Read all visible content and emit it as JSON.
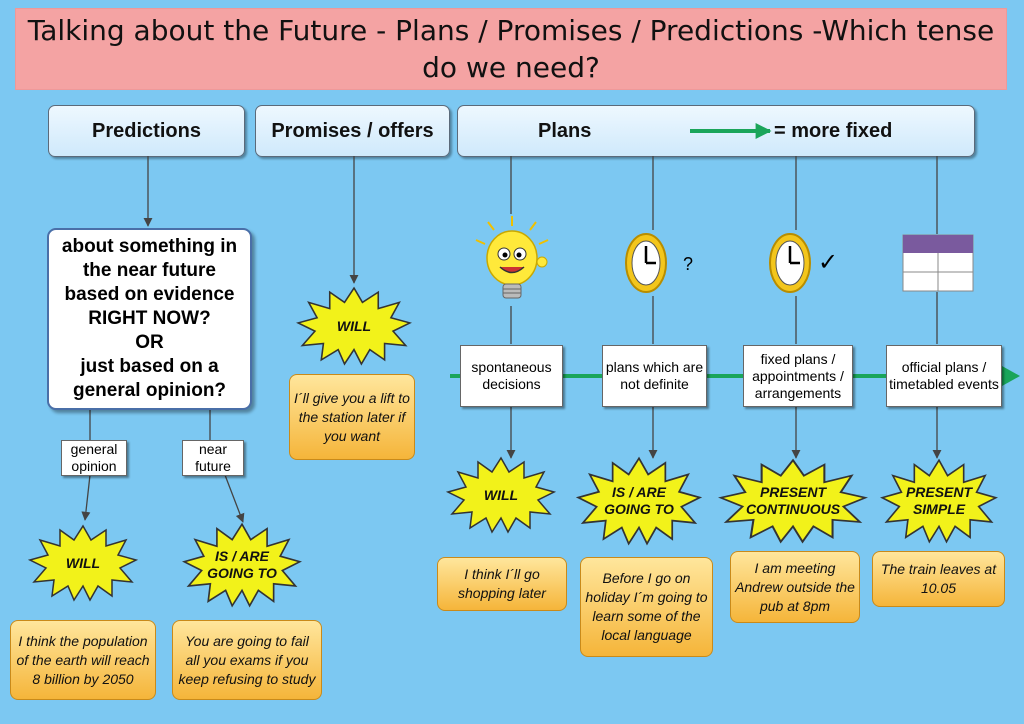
{
  "title": "Talking about the Future - Plans / Promises / Predictions -Which tense do we need?",
  "headers": {
    "predictions": "Predictions",
    "promises": "Promises / offers",
    "plans": "Plans",
    "more_fixed": "= more fixed"
  },
  "question": {
    "l1": "about something in",
    "l2": "the near future",
    "l3": "based on evidence",
    "l4": "RIGHT NOW?",
    "l5": "OR",
    "l6": "just based on a",
    "l7": "general opinion?"
  },
  "branches": {
    "general": "general opinion",
    "near": "near future"
  },
  "plan_types": {
    "spontaneous": "spontaneous decisions",
    "not_definite": "plans which are not definite",
    "fixed": "fixed plans / appointments / arrangements",
    "official": "official plans / timetabled events"
  },
  "tenses": {
    "will_general": "WILL",
    "going_near": "IS / ARE GOING TO",
    "will_promise": "WILL",
    "will_spont": "WILL",
    "going_plan": "IS / ARE GOING TO",
    "present_cont": "PRESENT CONTINUOUS",
    "present_simple": "PRESENT SIMPLE"
  },
  "examples": {
    "population": "I think the population of the earth will reach 8 billion by 2050",
    "fail": "You are going to fail all you exams if you keep refusing to study",
    "lift": "I´ll give you a lift to the station later if you want",
    "shopping": "I think I´ll go shopping later",
    "holiday": "Before I go on holiday I´m going to learn some of the local language",
    "meeting": "I am meeting Andrew outside the pub at 8pm",
    "train": "The train leaves at 10.05"
  },
  "symbols": {
    "question_mark": "?",
    "check": "✓"
  },
  "colors": {
    "arrow_green": "#1aa55a",
    "burst": "#f2f21a",
    "note": "#f9c65a",
    "background": "#7cc8f2"
  }
}
